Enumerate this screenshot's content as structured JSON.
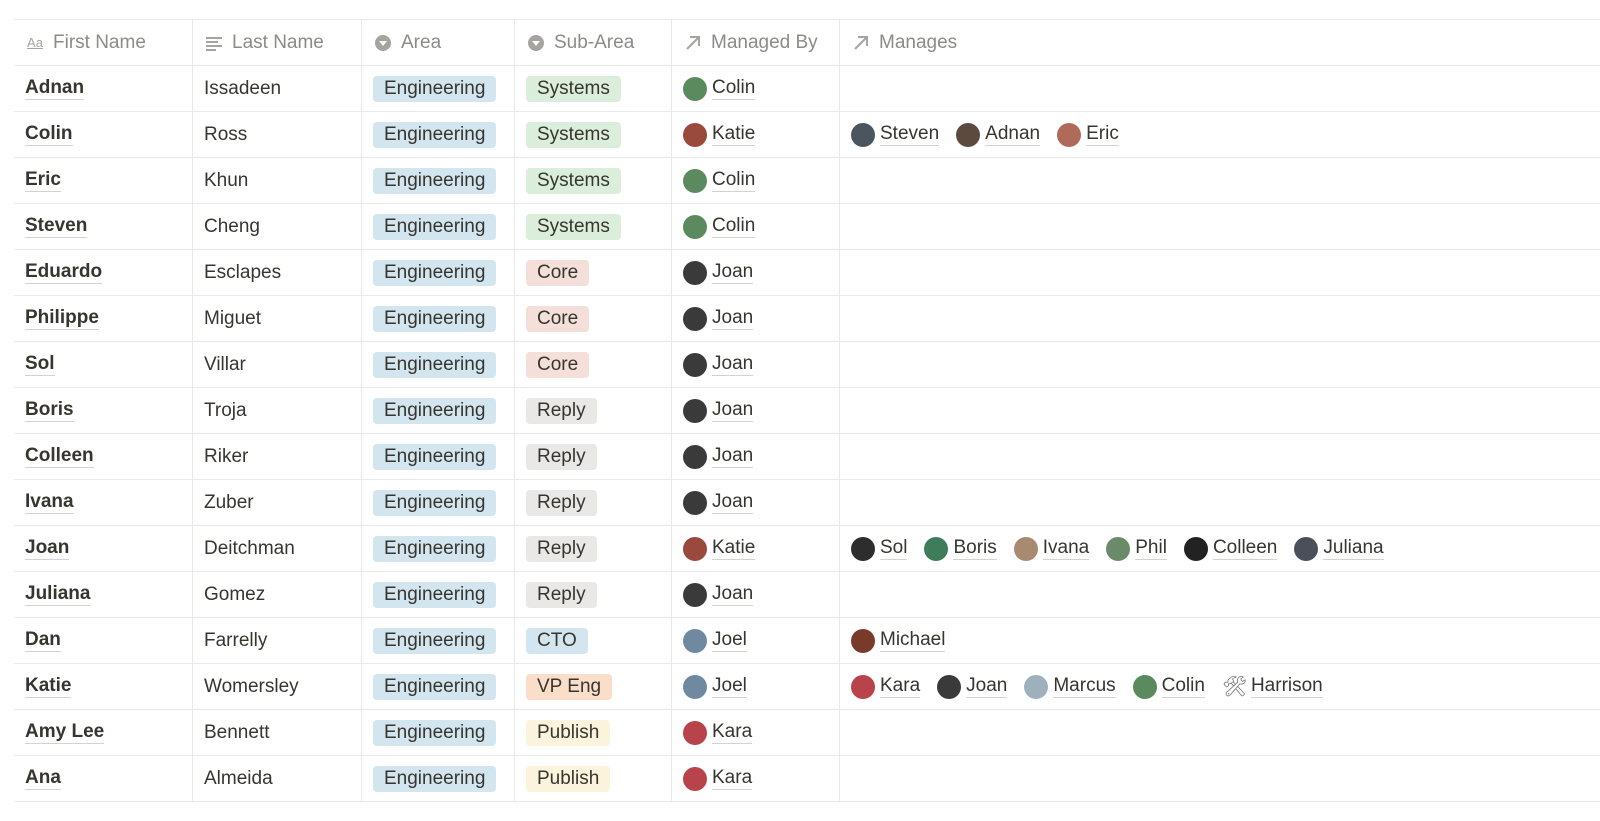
{
  "columns": [
    {
      "label": "First Name",
      "icon": "title-aa-icon"
    },
    {
      "label": "Last Name",
      "icon": "text-lines-icon"
    },
    {
      "label": "Area",
      "icon": "select-icon"
    },
    {
      "label": "Sub-Area",
      "icon": "select-icon"
    },
    {
      "label": "Managed By",
      "icon": "relation-arrow-icon"
    },
    {
      "label": "Manages",
      "icon": "relation-arrow-icon"
    }
  ],
  "tag_colors": {
    "Engineering": "#d3e5ef",
    "Systems": "#dbeddb",
    "Core": "#f4dfdb",
    "Reply": "#e9e8e7",
    "CTO": "#d3e5ef",
    "VP Eng": "#fadec9",
    "Publish": "#fbf3db"
  },
  "avatar_colors": {
    "Colin": "#5b8a5e",
    "Katie": "#9a4a3c",
    "Joan": "#3a3a3a",
    "Joel": "#6f8aa0",
    "Kara": "#b8434a",
    "Steven": "#4a5560",
    "Adnan": "#5c4a3e",
    "Eric": "#b06a5a",
    "Sol": "#2d2d2d",
    "Boris": "#3f7d5a",
    "Ivana": "#a88a70",
    "Phil": "#6a8a6a",
    "Colleen": "#222222",
    "Juliana": "#4a4f5a",
    "Michael": "#7a3a2a",
    "Marcus": "#9fb0bd"
  },
  "rows": [
    {
      "first": "Adnan",
      "last": "Issadeen",
      "area": "Engineering",
      "sub_area": "Systems",
      "managed_by": "Colin",
      "manages": []
    },
    {
      "first": "Colin",
      "last": "Ross",
      "area": "Engineering",
      "sub_area": "Systems",
      "managed_by": "Katie",
      "manages": [
        "Steven",
        "Adnan",
        "Eric"
      ]
    },
    {
      "first": "Eric",
      "last": "Khun",
      "area": "Engineering",
      "sub_area": "Systems",
      "managed_by": "Colin",
      "manages": []
    },
    {
      "first": "Steven",
      "last": "Cheng",
      "area": "Engineering",
      "sub_area": "Systems",
      "managed_by": "Colin",
      "manages": []
    },
    {
      "first": "Eduardo",
      "last": "Esclapes",
      "area": "Engineering",
      "sub_area": "Core",
      "managed_by": "Joan",
      "manages": []
    },
    {
      "first": "Philippe",
      "last": "Miguet",
      "area": "Engineering",
      "sub_area": "Core",
      "managed_by": "Joan",
      "manages": []
    },
    {
      "first": "Sol",
      "last": "Villar",
      "area": "Engineering",
      "sub_area": "Core",
      "managed_by": "Joan",
      "manages": []
    },
    {
      "first": "Boris",
      "last": "Troja",
      "area": "Engineering",
      "sub_area": "Reply",
      "managed_by": "Joan",
      "manages": []
    },
    {
      "first": "Colleen",
      "last": "Riker",
      "area": "Engineering",
      "sub_area": "Reply",
      "managed_by": "Joan",
      "manages": []
    },
    {
      "first": "Ivana",
      "last": "Zuber",
      "area": "Engineering",
      "sub_area": "Reply",
      "managed_by": "Joan",
      "manages": []
    },
    {
      "first": "Joan",
      "last": "Deitchman",
      "area": "Engineering",
      "sub_area": "Reply",
      "managed_by": "Katie",
      "manages": [
        "Sol",
        "Boris",
        "Ivana",
        "Phil",
        "Colleen",
        "Juliana"
      ]
    },
    {
      "first": "Juliana",
      "last": "Gomez",
      "area": "Engineering",
      "sub_area": "Reply",
      "managed_by": "Joan",
      "manages": []
    },
    {
      "first": "Dan",
      "last": "Farrelly",
      "area": "Engineering",
      "sub_area": "CTO",
      "managed_by": "Joel",
      "manages": [
        "Michael"
      ]
    },
    {
      "first": "Katie",
      "last": "Womersley",
      "area": "Engineering",
      "sub_area": "VP Eng",
      "managed_by": "Joel",
      "manages": [
        "Kara",
        "Joan",
        "Marcus",
        "Colin",
        "Harrison"
      ]
    },
    {
      "first": "Amy Lee",
      "last": "Bennett",
      "area": "Engineering",
      "sub_area": "Publish",
      "managed_by": "Kara",
      "manages": []
    },
    {
      "first": "Ana",
      "last": "Almeida",
      "area": "Engineering",
      "sub_area": "Publish",
      "managed_by": "Kara",
      "manages": []
    }
  ],
  "tool_avatar_people": [
    "Harrison"
  ]
}
